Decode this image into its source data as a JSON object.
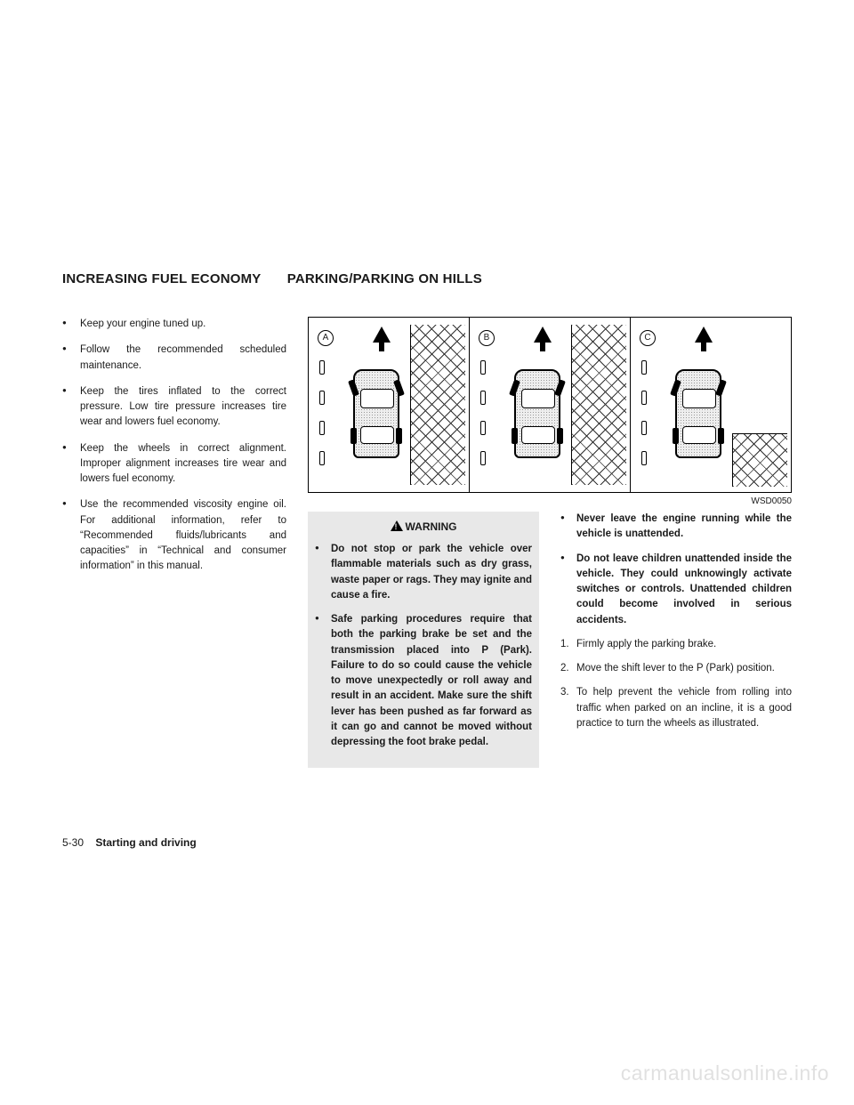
{
  "headings": {
    "left": "INCREASING FUEL ECONOMY",
    "right": "PARKING/PARKING ON HILLS"
  },
  "left_bullets": [
    "Keep your engine tuned up.",
    "Follow the recommended scheduled maintenance.",
    "Keep the tires inflated to the correct pressure. Low tire pressure increases tire wear and lowers fuel economy.",
    "Keep the wheels in correct alignment. Improper alignment increases tire wear and lowers fuel economy.",
    "Use the recommended viscosity engine oil. For additional information, refer to “Recommended fluids/lubricants and capacities” in “Technical and consumer information” in this manual."
  ],
  "figure": {
    "labels": {
      "a": "A",
      "b": "B",
      "c": "C"
    },
    "code": "WSD0050"
  },
  "warning": {
    "title": "WARNING",
    "items": [
      "Do not stop or park the vehicle over flammable materials such as dry grass, waste paper or rags. They may ignite and cause a fire.",
      "Safe parking procedures require that both the parking brake be set and the transmission placed into P (Park). Failure to do so could cause the vehicle to move unexpectedly or roll away and result in an accident. Make sure the shift lever has been pushed as far forward as it can go and cannot be moved without depressing the foot brake pedal."
    ]
  },
  "right_bullets": [
    "Never leave the engine running while the vehicle is unattended.",
    "Do not leave children unattended inside the vehicle. They could unknowingly activate switches or controls. Unattended children could become involved in serious accidents."
  ],
  "steps": [
    "Firmly apply the parking brake.",
    "Move the shift lever to the P (Park) position.",
    "To help prevent the vehicle from rolling into traffic when parked on an incline, it is a good practice to turn the wheels as illustrated."
  ],
  "footer": {
    "page": "5-30",
    "section": "Starting and driving"
  },
  "watermark": "carmanualsonline.info"
}
